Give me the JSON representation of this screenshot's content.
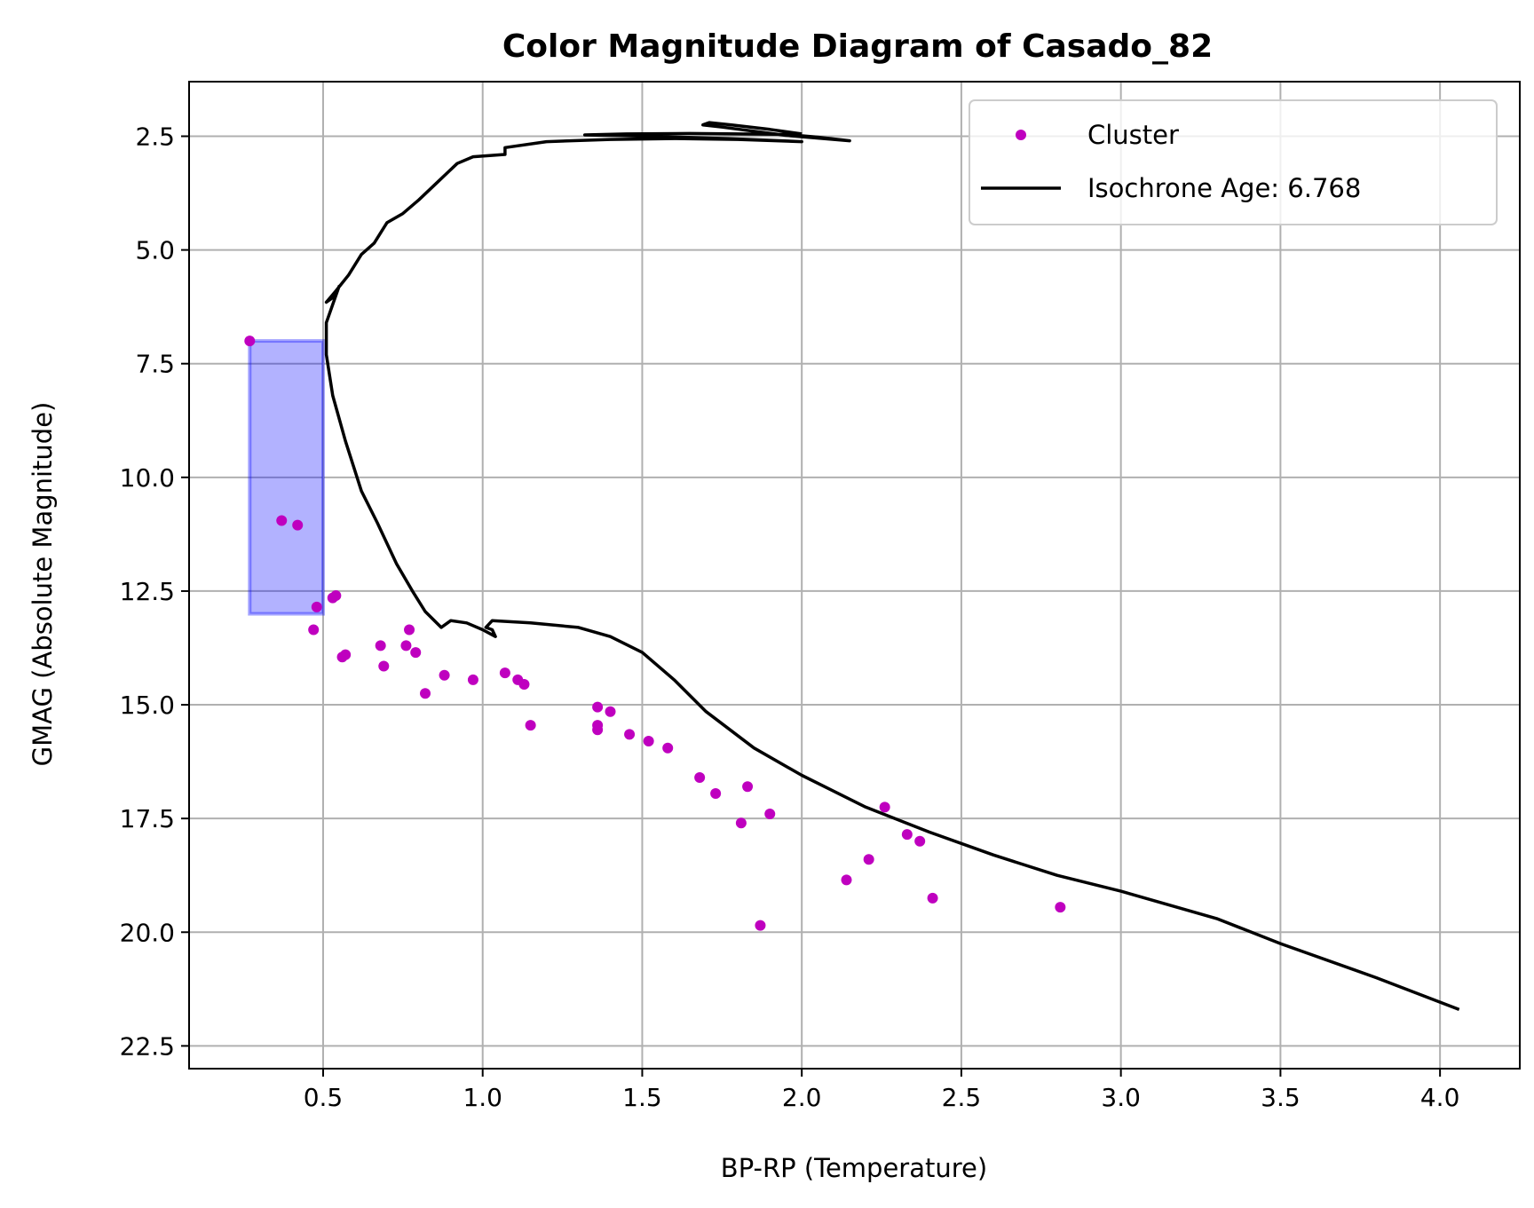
{
  "chart_data": {
    "type": "scatter",
    "title": "Color Magnitude Diagram of Casado_82",
    "xlabel": "BP-RP (Temperature)",
    "ylabel": "GMAG (Absolute Magnitude)",
    "xlim": [
      0.08,
      4.25
    ],
    "ylim": [
      23.0,
      1.3
    ],
    "y_inverted": true,
    "grid": true,
    "legend_position": "top-right",
    "xticks": [
      0.5,
      1.0,
      1.5,
      2.0,
      2.5,
      3.0,
      3.5,
      4.0
    ],
    "xtick_labels": [
      "0.5",
      "1.0",
      "1.5",
      "2.0",
      "2.5",
      "3.0",
      "3.5",
      "4.0"
    ],
    "yticks": [
      2.5,
      5.0,
      7.5,
      10.0,
      12.5,
      15.0,
      17.5,
      20.0,
      22.5
    ],
    "ytick_labels": [
      "2.5",
      "5.0",
      "7.5",
      "10.0",
      "12.5",
      "15.0",
      "17.5",
      "20.0",
      "22.5"
    ],
    "highlight_box": {
      "x0": 0.27,
      "x1": 0.5,
      "y0": 7.0,
      "y1": 13.0,
      "color": "#0000ff",
      "opacity": 0.3
    },
    "series": [
      {
        "name": "Cluster",
        "kind": "scatter",
        "color": "#bf00bf",
        "points": [
          [
            0.27,
            7.0
          ],
          [
            0.37,
            10.95
          ],
          [
            0.42,
            11.05
          ],
          [
            0.48,
            12.85
          ],
          [
            0.53,
            12.65
          ],
          [
            0.54,
            12.6
          ],
          [
            0.47,
            13.35
          ],
          [
            0.56,
            13.95
          ],
          [
            0.57,
            13.9
          ],
          [
            0.68,
            13.7
          ],
          [
            0.69,
            14.15
          ],
          [
            0.76,
            13.7
          ],
          [
            0.77,
            13.35
          ],
          [
            0.79,
            13.85
          ],
          [
            0.82,
            14.75
          ],
          [
            0.88,
            14.35
          ],
          [
            0.97,
            14.45
          ],
          [
            1.07,
            14.3
          ],
          [
            1.11,
            14.45
          ],
          [
            1.13,
            14.55
          ],
          [
            1.15,
            15.45
          ],
          [
            1.36,
            15.05
          ],
          [
            1.36,
            15.45
          ],
          [
            1.36,
            15.55
          ],
          [
            1.4,
            15.15
          ],
          [
            1.46,
            15.65
          ],
          [
            1.52,
            15.8
          ],
          [
            1.58,
            15.95
          ],
          [
            1.68,
            16.6
          ],
          [
            1.73,
            16.95
          ],
          [
            1.81,
            17.6
          ],
          [
            1.83,
            16.8
          ],
          [
            1.87,
            19.85
          ],
          [
            1.9,
            17.4
          ],
          [
            2.14,
            18.85
          ],
          [
            2.21,
            18.4
          ],
          [
            2.26,
            17.25
          ],
          [
            2.33,
            17.85
          ],
          [
            2.37,
            18.0
          ],
          [
            2.41,
            19.25
          ],
          [
            2.81,
            19.45
          ]
        ]
      },
      {
        "name": "Isochrone Age: 6.768",
        "kind": "line",
        "color": "#000000",
        "points": [
          [
            4.06,
            21.7
          ],
          [
            3.8,
            21.0
          ],
          [
            3.5,
            20.25
          ],
          [
            3.3,
            19.7
          ],
          [
            3.0,
            19.1
          ],
          [
            2.8,
            18.75
          ],
          [
            2.6,
            18.3
          ],
          [
            2.4,
            17.8
          ],
          [
            2.2,
            17.25
          ],
          [
            2.0,
            16.55
          ],
          [
            1.85,
            15.95
          ],
          [
            1.7,
            15.15
          ],
          [
            1.6,
            14.45
          ],
          [
            1.5,
            13.85
          ],
          [
            1.4,
            13.5
          ],
          [
            1.3,
            13.3
          ],
          [
            1.15,
            13.2
          ],
          [
            1.03,
            13.15
          ],
          [
            1.01,
            13.3
          ],
          [
            1.03,
            13.35
          ],
          [
            1.04,
            13.5
          ],
          [
            1.0,
            13.35
          ],
          [
            0.95,
            13.2
          ],
          [
            0.9,
            13.15
          ],
          [
            0.87,
            13.3
          ],
          [
            0.82,
            12.95
          ],
          [
            0.78,
            12.5
          ],
          [
            0.73,
            11.9
          ],
          [
            0.67,
            11.0
          ],
          [
            0.62,
            10.3
          ],
          [
            0.57,
            9.2
          ],
          [
            0.53,
            8.2
          ],
          [
            0.51,
            7.3
          ],
          [
            0.51,
            6.6
          ],
          [
            0.53,
            6.2
          ],
          [
            0.55,
            5.8
          ],
          [
            0.54,
            6.0
          ],
          [
            0.51,
            6.15
          ],
          [
            0.54,
            5.9
          ],
          [
            0.58,
            5.55
          ],
          [
            0.62,
            5.1
          ],
          [
            0.66,
            4.85
          ],
          [
            0.7,
            4.4
          ],
          [
            0.75,
            4.2
          ],
          [
            0.8,
            3.9
          ],
          [
            0.86,
            3.5
          ],
          [
            0.92,
            3.1
          ],
          [
            0.97,
            2.95
          ],
          [
            1.07,
            2.9
          ],
          [
            1.07,
            2.75
          ],
          [
            1.2,
            2.62
          ],
          [
            1.4,
            2.57
          ],
          [
            1.6,
            2.55
          ],
          [
            1.8,
            2.57
          ],
          [
            2.0,
            2.62
          ],
          [
            1.8,
            2.56
          ],
          [
            1.62,
            2.52
          ],
          [
            1.4,
            2.48
          ],
          [
            1.32,
            2.47
          ],
          [
            1.45,
            2.45
          ],
          [
            1.65,
            2.44
          ],
          [
            1.8,
            2.45
          ],
          [
            1.95,
            2.46
          ],
          [
            2.05,
            2.52
          ],
          [
            2.15,
            2.6
          ],
          [
            1.95,
            2.48
          ],
          [
            1.75,
            2.3
          ],
          [
            1.69,
            2.25
          ],
          [
            1.71,
            2.2
          ],
          [
            1.78,
            2.25
          ],
          [
            1.9,
            2.35
          ],
          [
            2.0,
            2.45
          ]
        ]
      }
    ]
  }
}
